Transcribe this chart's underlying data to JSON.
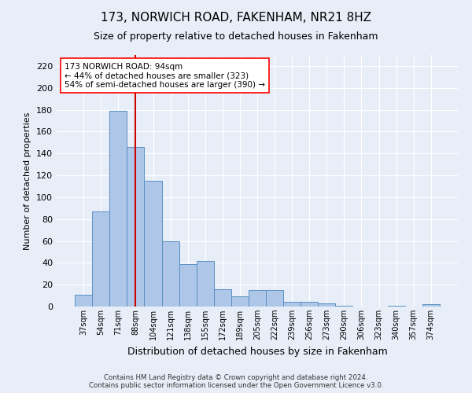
{
  "title": "173, NORWICH ROAD, FAKENHAM, NR21 8HZ",
  "subtitle": "Size of property relative to detached houses in Fakenham",
  "xlabel": "Distribution of detached houses by size in Fakenham",
  "ylabel": "Number of detached properties",
  "categories": [
    "37sqm",
    "54sqm",
    "71sqm",
    "88sqm",
    "104sqm",
    "121sqm",
    "138sqm",
    "155sqm",
    "172sqm",
    "189sqm",
    "205sqm",
    "222sqm",
    "239sqm",
    "256sqm",
    "273sqm",
    "290sqm",
    "306sqm",
    "323sqm",
    "340sqm",
    "357sqm",
    "374sqm"
  ],
  "values": [
    11,
    87,
    179,
    146,
    115,
    60,
    39,
    42,
    16,
    9,
    15,
    15,
    4,
    4,
    3,
    1,
    0,
    0,
    1,
    0,
    2
  ],
  "bar_color": "#aec6e8",
  "bar_edge_color": "#5a8fc2",
  "vline_x_index": 3,
  "vline_color": "#cc0000",
  "annotation_text": "173 NORWICH ROAD: 94sqm\n← 44% of detached houses are smaller (323)\n54% of semi-detached houses are larger (390) →",
  "ylim": [
    0,
    230
  ],
  "yticks": [
    0,
    20,
    40,
    60,
    80,
    100,
    120,
    140,
    160,
    180,
    200,
    220
  ],
  "footer": "Contains HM Land Registry data © Crown copyright and database right 2024.\nContains public sector information licensed under the Open Government Licence v3.0.",
  "bg_color": "#e8eef8",
  "plot_bg_color": "#e8eef8",
  "grid_color": "#ffffff",
  "title_fontsize": 11,
  "subtitle_fontsize": 9,
  "ylabel_fontsize": 8,
  "xlabel_fontsize": 9,
  "ytick_fontsize": 8,
  "xtick_fontsize": 7
}
